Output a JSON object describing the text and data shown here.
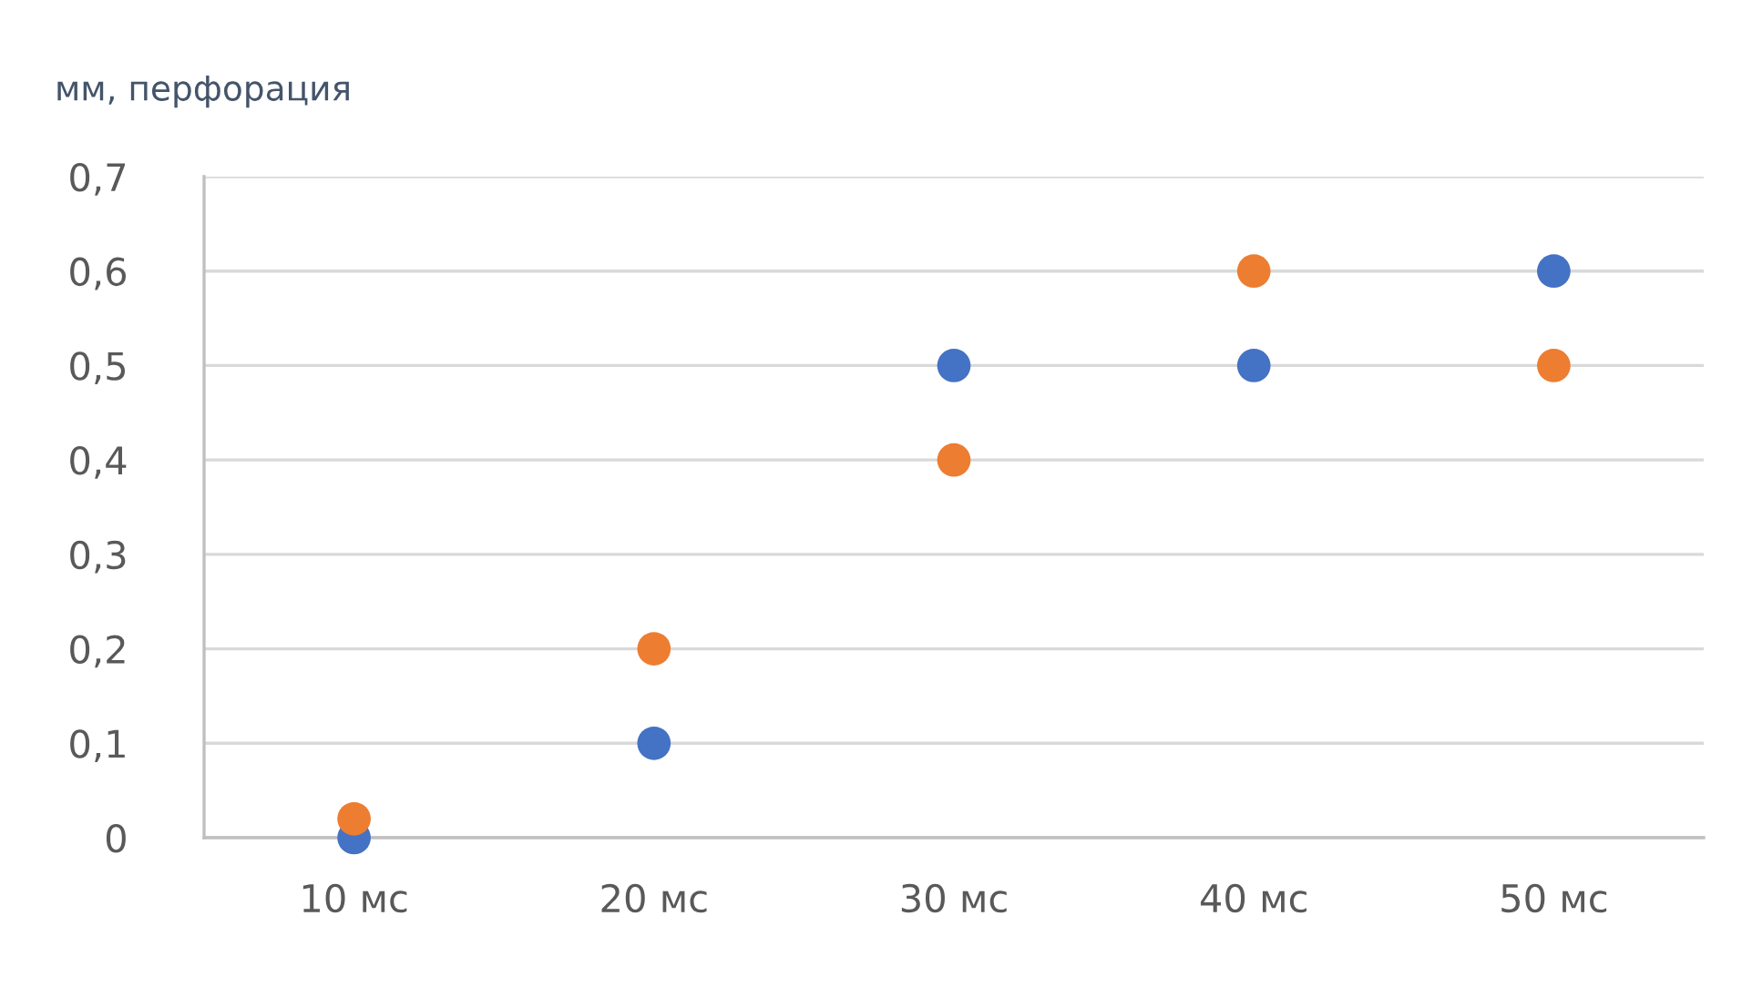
{
  "chart_data": {
    "type": "scatter",
    "ylabel": "мм, перфорация",
    "categories": [
      "10 мс",
      "20 мс",
      "30 мс",
      "40 мс",
      "50 мс"
    ],
    "series": [
      {
        "color": "#4472c4",
        "values": [
          0,
          0.1,
          0.5,
          0.5,
          0.6
        ]
      },
      {
        "color": "#ed7d31",
        "values": [
          0.02,
          0.2,
          0.4,
          0.6,
          0.5
        ]
      }
    ],
    "ylim": [
      0,
      0.7
    ],
    "yticks": [
      0,
      {
        "value": 0.1,
        "label": "0,1"
      },
      {
        "value": 0.2,
        "label": "0,2"
      },
      {
        "value": 0.3,
        "label": "0,3"
      },
      {
        "value": 0.4,
        "label": "0,4"
      },
      {
        "value": 0.5,
        "label": "0,5"
      },
      {
        "value": 0.6,
        "label": "0,6"
      },
      {
        "value": 0.7,
        "label": "0,7"
      }
    ],
    "grid": "y",
    "marker": "circle"
  }
}
